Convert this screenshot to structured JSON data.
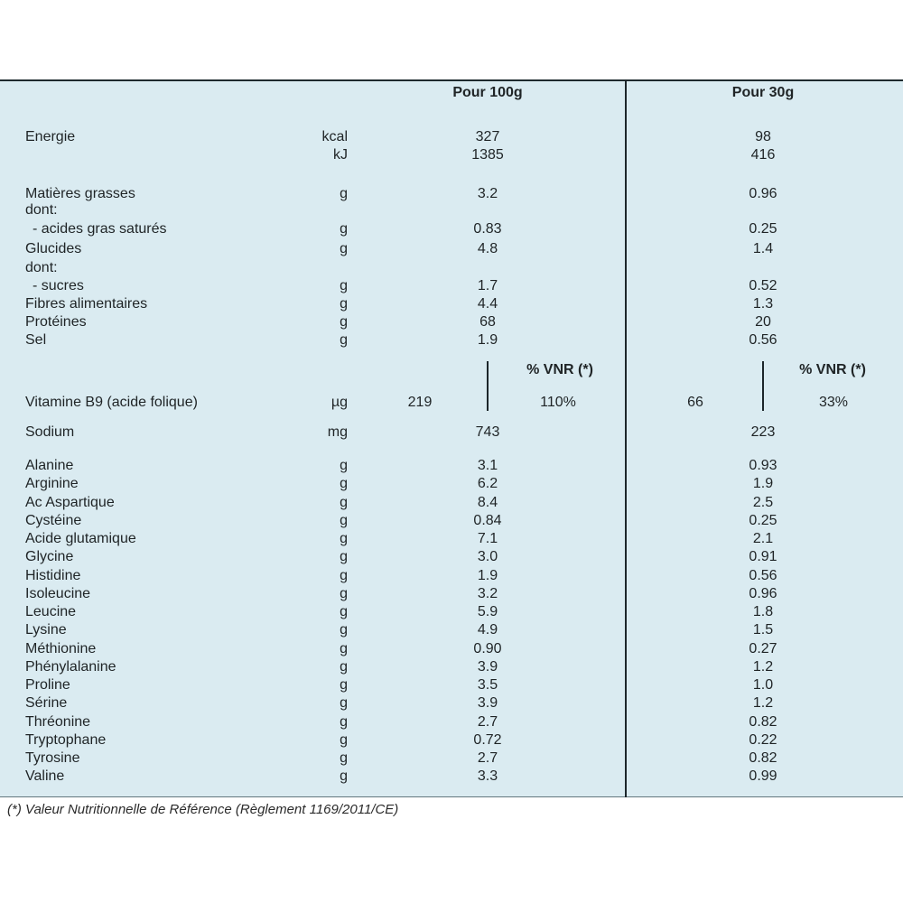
{
  "table": {
    "background_color": "#daebf1",
    "divider_color": "#1c262a",
    "text_color": "#1f2426",
    "header": {
      "col_100g": "Pour 100g",
      "col_30g": "Pour 30g"
    },
    "vnr_header": "% VNR (*)",
    "main_rows": [
      {
        "label": "Energie",
        "unit": "kcal",
        "per_100g": "327",
        "per_30g": "98"
      },
      {
        "label": "",
        "unit": "kJ",
        "per_100g": "1385",
        "per_30g": "416"
      },
      {
        "label": "Matières grasses",
        "unit": "g",
        "per_100g": "3.2",
        "per_30g": "0.96"
      },
      {
        "label": "dont:",
        "unit": "",
        "per_100g": "",
        "per_30g": ""
      },
      {
        "label": "- acides gras saturés",
        "unit": "g",
        "per_100g": "0.83",
        "per_30g": "0.25",
        "indent": true
      },
      {
        "label": "Glucides",
        "unit": "g",
        "per_100g": "4.8",
        "per_30g": "1.4"
      },
      {
        "label": "dont:",
        "unit": "",
        "per_100g": "",
        "per_30g": ""
      },
      {
        "label": "- sucres",
        "unit": "g",
        "per_100g": "1.7",
        "per_30g": "0.52",
        "indent": true
      },
      {
        "label": "Fibres alimentaires",
        "unit": "g",
        "per_100g": "4.4",
        "per_30g": "1.3"
      },
      {
        "label": "Protéines",
        "unit": "g",
        "per_100g": "68",
        "per_30g": "20"
      },
      {
        "label": "Sel",
        "unit": "g",
        "per_100g": "1.9",
        "per_30g": "0.56"
      }
    ],
    "vitamin_row": {
      "label": "Vitamine B9 (acide folique)",
      "unit": "µg",
      "amount_100g": "219",
      "vnr_100g": "110%",
      "amount_30g": "66",
      "vnr_30g": "33%"
    },
    "sodium_row": {
      "label": "Sodium",
      "unit": "mg",
      "per_100g": "743",
      "per_30g": "223"
    },
    "amino_acid_rows": [
      {
        "label": "Alanine",
        "unit": "g",
        "per_100g": "3.1",
        "per_30g": "0.93"
      },
      {
        "label": "Arginine",
        "unit": "g",
        "per_100g": "6.2",
        "per_30g": "1.9"
      },
      {
        "label": "Ac Aspartique",
        "unit": "g",
        "per_100g": "8.4",
        "per_30g": "2.5"
      },
      {
        "label": "Cystéine",
        "unit": "g",
        "per_100g": "0.84",
        "per_30g": "0.25"
      },
      {
        "label": "Acide glutamique",
        "unit": "g",
        "per_100g": "7.1",
        "per_30g": "2.1"
      },
      {
        "label": "Glycine",
        "unit": "g",
        "per_100g": "3.0",
        "per_30g": "0.91"
      },
      {
        "label": "Histidine",
        "unit": "g",
        "per_100g": "1.9",
        "per_30g": "0.56"
      },
      {
        "label": "Isoleucine",
        "unit": "g",
        "per_100g": "3.2",
        "per_30g": "0.96"
      },
      {
        "label": "Leucine",
        "unit": "g",
        "per_100g": "5.9",
        "per_30g": "1.8"
      },
      {
        "label": "Lysine",
        "unit": "g",
        "per_100g": "4.9",
        "per_30g": "1.5"
      },
      {
        "label": "Méthionine",
        "unit": "g",
        "per_100g": "0.90",
        "per_30g": "0.27"
      },
      {
        "label": "Phénylalanine",
        "unit": "g",
        "per_100g": "3.9",
        "per_30g": "1.2"
      },
      {
        "label": "Proline",
        "unit": "g",
        "per_100g": "3.5",
        "per_30g": "1.0"
      },
      {
        "label": "Sérine",
        "unit": "g",
        "per_100g": "3.9",
        "per_30g": "1.2"
      },
      {
        "label": "Thréonine",
        "unit": "g",
        "per_100g": "2.7",
        "per_30g": "0.82"
      },
      {
        "label": "Tryptophane",
        "unit": "g",
        "per_100g": "0.72",
        "per_30g": "0.22"
      },
      {
        "label": "Tyrosine",
        "unit": "g",
        "per_100g": "2.7",
        "per_30g": "0.82"
      },
      {
        "label": "Valine",
        "unit": "g",
        "per_100g": "3.3",
        "per_30g": "0.99"
      }
    ]
  },
  "footnote": "(*) Valeur Nutritionnelle de Référence (Règlement 1169/2011/CE)"
}
